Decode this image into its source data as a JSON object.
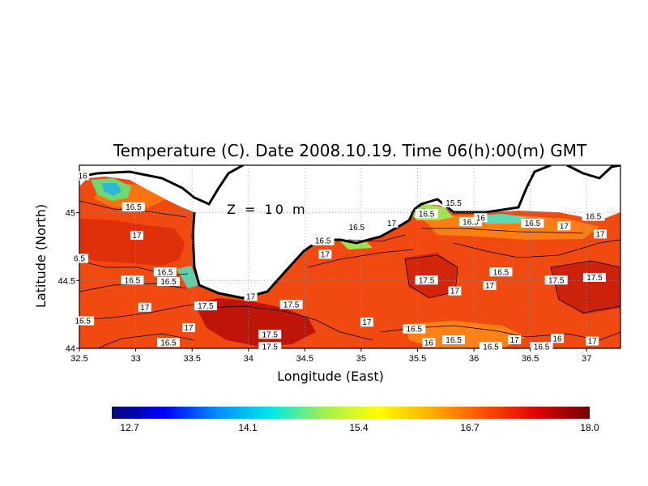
{
  "chart_data": {
    "type": "heatmap",
    "title": "Temperature (C). Date 2008.10.19. Time 06(h):00(m) GMT",
    "xlabel": "Longitude (East)",
    "ylabel": "Latitude (North)",
    "annotation": "Z = 10 m",
    "xlim": [
      32.5,
      37.3
    ],
    "ylim": [
      44.0,
      45.35
    ],
    "x_ticks": [
      {
        "value": 32.5,
        "label": "32.5"
      },
      {
        "value": 33,
        "label": "33"
      },
      {
        "value": 33.5,
        "label": "33.5"
      },
      {
        "value": 34,
        "label": "34"
      },
      {
        "value": 34.5,
        "label": "34.5"
      },
      {
        "value": 35,
        "label": "35"
      },
      {
        "value": 35.5,
        "label": "35.5"
      },
      {
        "value": 36,
        "label": "36"
      },
      {
        "value": 36.5,
        "label": "36.5"
      },
      {
        "value": 37,
        "label": "37"
      }
    ],
    "y_ticks": [
      {
        "value": 44,
        "label": "44"
      },
      {
        "value": 44.5,
        "label": "44.5"
      },
      {
        "value": 45,
        "label": "45"
      }
    ],
    "grid": true,
    "colorbar": {
      "min": 12.7,
      "max": 18.0,
      "tick_labels": [
        "12.7",
        "14.1",
        "15.4",
        "16.7",
        "18.0"
      ],
      "colors": [
        "#08086e",
        "#0000ff",
        "#0090ff",
        "#00e8e8",
        "#a0f050",
        "#ffff00",
        "#ffb000",
        "#ff5000",
        "#e00000",
        "#700000"
      ]
    },
    "contour_labels": [
      {
        "lon": 32.53,
        "lat": 45.27,
        "text": "16"
      },
      {
        "lon": 32.98,
        "lat": 45.04,
        "text": "16.5"
      },
      {
        "lon": 33.01,
        "lat": 44.83,
        "text": "17"
      },
      {
        "lon": 32.5,
        "lat": 44.66,
        "text": "6.5"
      },
      {
        "lon": 33.26,
        "lat": 44.56,
        "text": "16.5"
      },
      {
        "lon": 32.97,
        "lat": 44.5,
        "text": "16.5"
      },
      {
        "lon": 33.29,
        "lat": 44.49,
        "text": "16.5"
      },
      {
        "lon": 33.08,
        "lat": 44.3,
        "text": "17"
      },
      {
        "lon": 33.62,
        "lat": 44.31,
        "text": "17.5"
      },
      {
        "lon": 34.02,
        "lat": 44.38,
        "text": "17"
      },
      {
        "lon": 34.38,
        "lat": 44.32,
        "text": "17.5"
      },
      {
        "lon": 32.53,
        "lat": 44.2,
        "text": "16.5"
      },
      {
        "lon": 33.47,
        "lat": 44.15,
        "text": "17"
      },
      {
        "lon": 33.29,
        "lat": 44.04,
        "text": "16.5"
      },
      {
        "lon": 34.19,
        "lat": 44.1,
        "text": "17.5"
      },
      {
        "lon": 34.19,
        "lat": 44.01,
        "text": "17.5"
      },
      {
        "lon": 34.68,
        "lat": 44.69,
        "text": "17"
      },
      {
        "lon": 34.66,
        "lat": 44.79,
        "text": "16.5"
      },
      {
        "lon": 34.96,
        "lat": 44.89,
        "text": "16.5"
      },
      {
        "lon": 35.27,
        "lat": 44.92,
        "text": "17"
      },
      {
        "lon": 35.05,
        "lat": 44.19,
        "text": "17"
      },
      {
        "lon": 35.58,
        "lat": 44.5,
        "text": "17.5"
      },
      {
        "lon": 35.83,
        "lat": 44.42,
        "text": "17"
      },
      {
        "lon": 35.58,
        "lat": 44.99,
        "text": "16.5"
      },
      {
        "lon": 35.82,
        "lat": 45.07,
        "text": "15.5"
      },
      {
        "lon": 35.97,
        "lat": 44.93,
        "text": "16.5"
      },
      {
        "lon": 36.06,
        "lat": 44.96,
        "text": "16"
      },
      {
        "lon": 35.47,
        "lat": 44.14,
        "text": "16.5"
      },
      {
        "lon": 35.6,
        "lat": 44.04,
        "text": "16"
      },
      {
        "lon": 35.82,
        "lat": 44.06,
        "text": "16.5"
      },
      {
        "lon": 36.15,
        "lat": 44.01,
        "text": "16.5"
      },
      {
        "lon": 36.24,
        "lat": 44.56,
        "text": "16.5"
      },
      {
        "lon": 36.14,
        "lat": 44.46,
        "text": "17"
      },
      {
        "lon": 36.36,
        "lat": 44.06,
        "text": "17"
      },
      {
        "lon": 36.52,
        "lat": 44.92,
        "text": "16.5"
      },
      {
        "lon": 36.73,
        "lat": 44.5,
        "text": "17.5"
      },
      {
        "lon": 36.8,
        "lat": 44.9,
        "text": "17"
      },
      {
        "lon": 36.74,
        "lat": 44.07,
        "text": "16"
      },
      {
        "lon": 36.6,
        "lat": 44.01,
        "text": "16.5"
      },
      {
        "lon": 37.06,
        "lat": 44.97,
        "text": "16.5"
      },
      {
        "lon": 37.12,
        "lat": 44.84,
        "text": "17"
      },
      {
        "lon": 37.07,
        "lat": 44.52,
        "text": "17.5"
      },
      {
        "lon": 37.05,
        "lat": 44.05,
        "text": "17"
      }
    ]
  }
}
